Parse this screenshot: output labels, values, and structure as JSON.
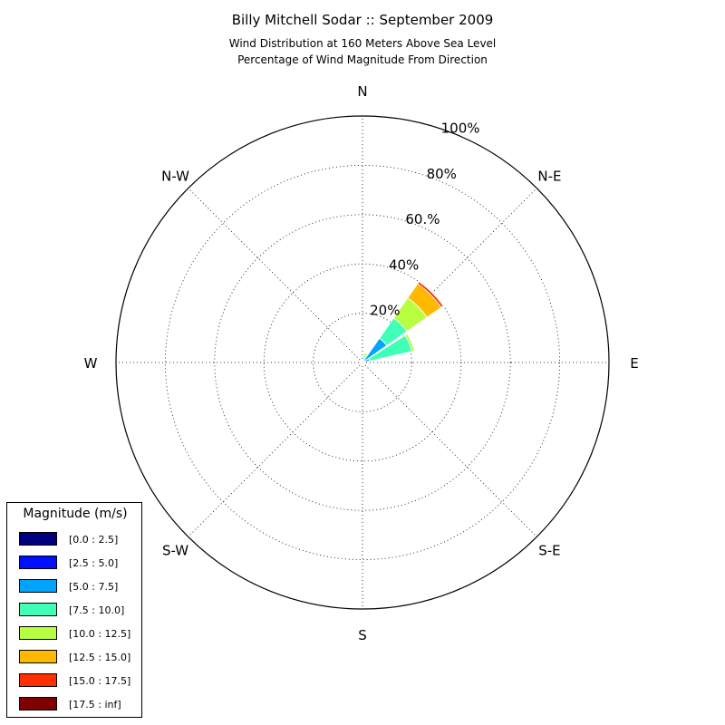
{
  "header": {
    "title": "Billy Mitchell Sodar :: September 2009",
    "subtitle_line1": "Wind Distribution at 160 Meters Above Sea Level",
    "subtitle_line2": "Percentage of Wind Magnitude From Direction"
  },
  "chart_data": {
    "type": "windrose",
    "title": "Billy Mitchell Sodar :: September 2009",
    "subtitle": "Wind Distribution at 160 Meters Above Sea Level / Percentage of Wind Magnitude From Direction",
    "directions": [
      "N",
      "N-E",
      "E",
      "S-E",
      "S",
      "S-W",
      "W",
      "N-W"
    ],
    "radial_ticks": [
      "20%",
      "40%",
      "60.%",
      "80%",
      "100%"
    ],
    "radial_range": [
      0,
      100
    ],
    "radial_unit": "%",
    "grid": true,
    "legend_title": "Magnitude (m/s)",
    "legend_position": "bottom-left",
    "bins": [
      {
        "label": "[0.0 : 2.5]",
        "color": "#000080"
      },
      {
        "label": "[2.5 : 5.0]",
        "color": "#0010ff"
      },
      {
        "label": "[5.0 : 7.5]",
        "color": "#00a4ff"
      },
      {
        "label": "[7.5 : 10.0]",
        "color": "#40ffb7"
      },
      {
        "label": "[10.0 : 12.5]",
        "color": "#b7ff40"
      },
      {
        "label": "[12.5 : 15.0]",
        "color": "#ffb900"
      },
      {
        "label": "[15.0 : 17.5]",
        "color": "#ff3000"
      },
      {
        "label": "[17.5 : inf]",
        "color": "#800000"
      }
    ],
    "sectors": [
      {
        "direction_deg": 22.5,
        "cumulative": [
          0.0,
          0.3,
          1.5,
          3.0,
          4.0,
          4.0,
          4.0,
          4.0
        ]
      },
      {
        "direction_deg": 45,
        "cumulative": [
          0.0,
          0.5,
          12.0,
          22.0,
          32.0,
          39.0,
          40.0,
          40.0
        ]
      },
      {
        "direction_deg": 67.5,
        "cumulative": [
          0.0,
          0.3,
          3.0,
          20.5,
          21.5,
          21.5,
          21.5,
          21.5
        ]
      },
      {
        "direction_deg": 112.5,
        "cumulative": [
          0.0,
          0.3,
          0.5,
          0.5,
          0.5,
          0.5,
          0.5,
          0.5
        ]
      },
      {
        "direction_deg": 247.5,
        "cumulative": [
          0.0,
          1.0,
          1.0,
          1.0,
          1.0,
          1.0,
          1.0,
          1.0
        ]
      },
      {
        "direction_deg": 292.5,
        "cumulative": [
          0.0,
          0.6,
          0.6,
          0.6,
          0.6,
          0.6,
          0.6,
          0.6
        ]
      },
      {
        "direction_deg": 337.5,
        "cumulative": [
          0.0,
          0.5,
          0.8,
          0.8,
          0.8,
          0.8,
          0.8,
          0.8
        ]
      }
    ]
  }
}
